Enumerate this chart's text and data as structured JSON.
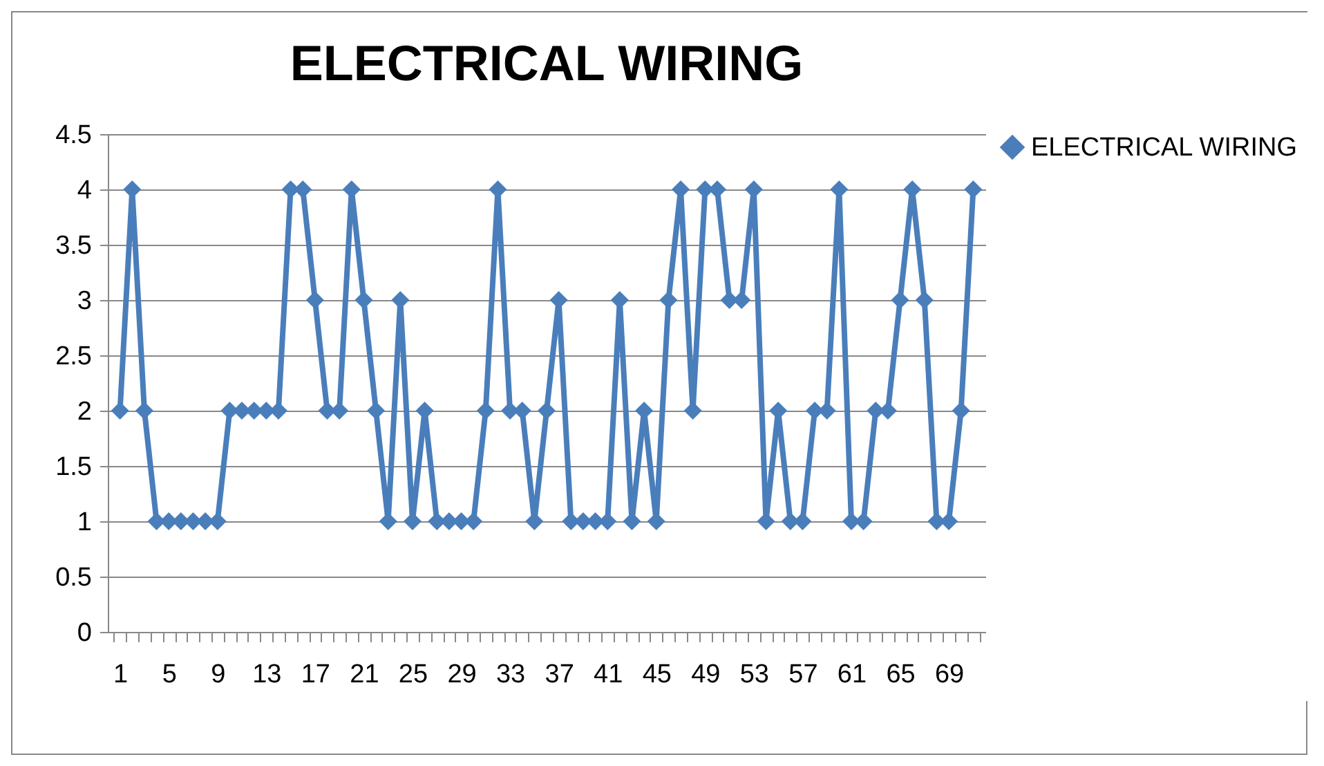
{
  "chart_data": {
    "type": "line",
    "title": "ELECTRICAL WIRING",
    "categories": [
      "1",
      null,
      null,
      null,
      "5",
      null,
      null,
      null,
      "9",
      null,
      null,
      null,
      "13",
      null,
      null,
      null,
      "17",
      null,
      null,
      null,
      "21",
      null,
      null,
      null,
      "25",
      null,
      null,
      null,
      "29",
      null,
      null,
      null,
      "33",
      null,
      null,
      null,
      "37",
      null,
      null,
      null,
      "41",
      null,
      null,
      null,
      "45",
      null,
      null,
      null,
      "49",
      null,
      null,
      null,
      "53",
      null,
      null,
      null,
      "57",
      null,
      null,
      null,
      "61",
      null,
      null,
      null,
      "65",
      null,
      null,
      null,
      "69",
      null,
      null
    ],
    "series": [
      {
        "name": "ELECTRICAL WIRING",
        "color": "#4a7ebb",
        "values": [
          2,
          4,
          2,
          1,
          1,
          1,
          1,
          1,
          1,
          2,
          2,
          2,
          2,
          2,
          4,
          4,
          3,
          2,
          2,
          4,
          3,
          2,
          1,
          3,
          1,
          2,
          1,
          1,
          1,
          1,
          2,
          4,
          2,
          2,
          1,
          2,
          3,
          1,
          1,
          1,
          1,
          3,
          1,
          2,
          1,
          3,
          4,
          2,
          4,
          4,
          3,
          3,
          4,
          1,
          2,
          1,
          1,
          2,
          2,
          4,
          1,
          1,
          2,
          2,
          3,
          4,
          3,
          1,
          1,
          2,
          4
        ]
      }
    ],
    "ylim": [
      0,
      4.5
    ],
    "yticks": [
      0,
      0.5,
      1,
      1.5,
      2,
      2.5,
      3,
      3.5,
      4,
      4.5
    ],
    "grid": "y",
    "legend": "right",
    "marker": "diamond",
    "line_style": "solid"
  }
}
